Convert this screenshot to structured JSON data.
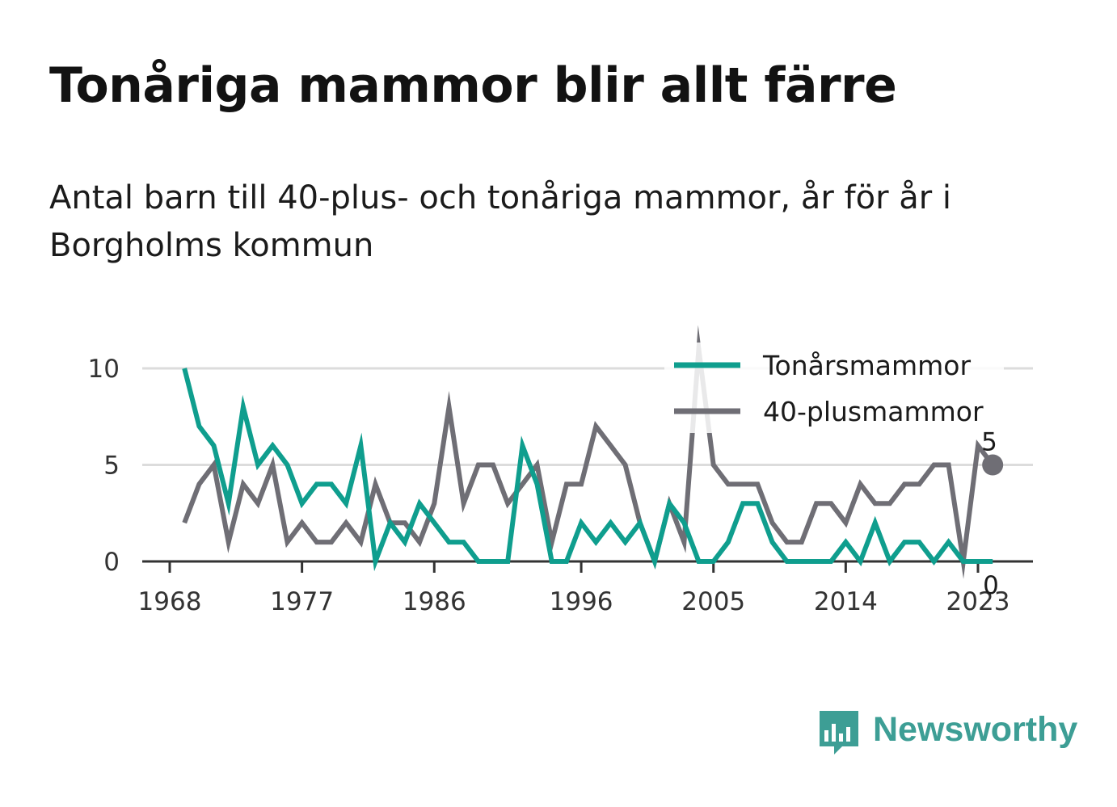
{
  "title": "Tonåriga mammor blir allt färre",
  "subtitle": "Antal barn till 40-plus- och tonåriga mammor, år för år i Borgholms kommun",
  "brand": {
    "name": "Newsworthy",
    "color": "#3d9e95",
    "icon": "newsworthy-logo-icon"
  },
  "chart_data": {
    "type": "line",
    "title": "Tonåriga mammor blir allt färre",
    "subtitle": "Antal barn till 40-plus- och tonåriga mammor, år för år i Borgholms kommun",
    "xlabel": "",
    "ylabel": "",
    "xlim": [
      1968,
      2025
    ],
    "ylim": [
      0,
      11
    ],
    "x_ticks": [
      "1968",
      "1977",
      "1986",
      "1996",
      "2005",
      "2014",
      "2023"
    ],
    "y_ticks": [
      "0",
      "5",
      "10"
    ],
    "grid": true,
    "legend_position": "top-right",
    "x": [
      1969,
      1970,
      1971,
      1972,
      1973,
      1974,
      1975,
      1976,
      1977,
      1978,
      1979,
      1980,
      1981,
      1982,
      1983,
      1984,
      1985,
      1986,
      1987,
      1988,
      1989,
      1990,
      1991,
      1992,
      1993,
      1994,
      1995,
      1996,
      1997,
      1998,
      1999,
      2000,
      2001,
      2002,
      2003,
      2004,
      2005,
      2006,
      2007,
      2008,
      2009,
      2010,
      2011,
      2012,
      2013,
      2014,
      2015,
      2016,
      2017,
      2018,
      2019,
      2020,
      2021,
      2022,
      2023,
      2024
    ],
    "series": [
      {
        "name": "Tonårsmammor",
        "color": "#0f9e8e",
        "end_label": "0",
        "values": [
          10,
          7,
          6,
          3,
          8,
          5,
          6,
          5,
          3,
          4,
          4,
          3,
          6,
          0,
          2,
          1,
          3,
          2,
          1,
          1,
          0,
          0,
          0,
          6,
          4,
          0,
          0,
          2,
          1,
          2,
          1,
          2,
          0,
          3,
          2,
          0,
          0,
          1,
          3,
          3,
          1,
          0,
          0,
          0,
          0,
          1,
          0,
          2,
          0,
          1,
          1,
          0,
          1,
          0,
          0,
          0
        ]
      },
      {
        "name": "40-plusmammor",
        "color": "#6f6e75",
        "end_label": "5",
        "values": [
          2,
          4,
          5,
          1,
          4,
          3,
          5,
          1,
          2,
          1,
          1,
          2,
          1,
          4,
          2,
          2,
          1,
          3,
          8,
          3,
          5,
          5,
          3,
          4,
          5,
          1,
          4,
          4,
          7,
          6,
          5,
          2,
          0,
          3,
          1,
          11,
          5,
          4,
          4,
          4,
          2,
          1,
          1,
          3,
          3,
          2,
          4,
          3,
          3,
          4,
          4,
          5,
          5,
          0,
          6,
          5
        ]
      }
    ]
  }
}
